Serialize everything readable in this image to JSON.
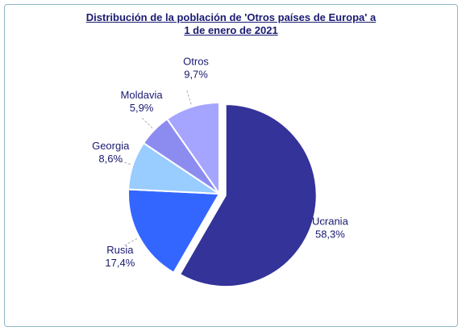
{
  "chart_data": {
    "type": "pie",
    "title": "Distribución de la población de 'Otros países de Europa' a 1 de enero de 2021",
    "categories": [
      "Ucrania",
      "Rusia",
      "Georgia",
      "Moldavia",
      "Otros"
    ],
    "values": [
      58.3,
      17.4,
      8.6,
      5.9,
      9.7
    ],
    "value_labels": [
      "58,3%",
      "17,4%",
      "8,6%",
      "5,9%",
      "9,7%"
    ],
    "colors": [
      "#333399",
      "#3366ff",
      "#99ccff",
      "#8c8cf0",
      "#a5a5ff"
    ]
  }
}
